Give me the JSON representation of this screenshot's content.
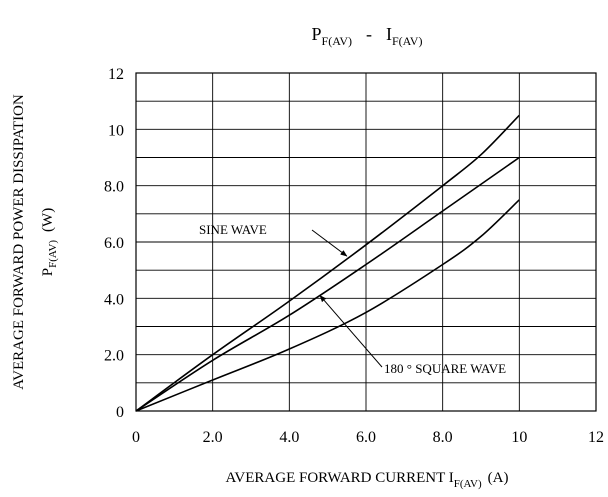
{
  "chart_data": {
    "type": "line",
    "title": {
      "left": "P",
      "left_sub": "F(AV)",
      "sep": "-",
      "right": "I",
      "right_sub": "F(AV)"
    },
    "xlabel": {
      "text": "AVERAGE FORWARD CURRENT I",
      "sub": "F(AV)",
      "unit": "(A)"
    },
    "ylabel": {
      "line1": "AVERAGE FORWARD POWER DISSIPATION",
      "line2_main": "P",
      "line2_sub": "F(AV)",
      "line2_unit": "(W)"
    },
    "xlim": [
      0,
      12
    ],
    "ylim": [
      0,
      12
    ],
    "grid": true,
    "x_ticks": [
      {
        "value": 0,
        "label": "0"
      },
      {
        "value": 2,
        "label": "2.0"
      },
      {
        "value": 4,
        "label": "4.0"
      },
      {
        "value": 6,
        "label": "6.0"
      },
      {
        "value": 8,
        "label": "8.0"
      },
      {
        "value": 10,
        "label": "10"
      },
      {
        "value": 12,
        "label": "12"
      }
    ],
    "y_ticks": [
      {
        "value": 0,
        "label": "0"
      },
      {
        "value": 2,
        "label": "2.0"
      },
      {
        "value": 4,
        "label": "4.0"
      },
      {
        "value": 6,
        "label": "6.0"
      },
      {
        "value": 8,
        "label": "8.0"
      },
      {
        "value": 10,
        "label": "10"
      },
      {
        "value": 12,
        "label": "12"
      }
    ],
    "series": [
      {
        "x": [
          0,
          2,
          4,
          6,
          8,
          9,
          10
        ],
        "y": [
          0,
          2.0,
          3.9,
          5.9,
          8.0,
          9.1,
          10.5
        ]
      },
      {
        "x": [
          0,
          2,
          4,
          6,
          8,
          10
        ],
        "y": [
          0,
          1.8,
          3.4,
          5.2,
          7.1,
          9.0
        ]
      },
      {
        "x": [
          0,
          2,
          4,
          6,
          8,
          9,
          10
        ],
        "y": [
          0,
          1.1,
          2.2,
          3.5,
          5.2,
          6.2,
          7.5
        ]
      }
    ],
    "annotations": [
      {
        "text": "SINE WAVE",
        "target_x": 5.5,
        "target_y": 5.5
      },
      {
        "text": "180 ° SQUARE WAVE",
        "target_x": 4.8,
        "target_y": 4.1
      }
    ]
  }
}
